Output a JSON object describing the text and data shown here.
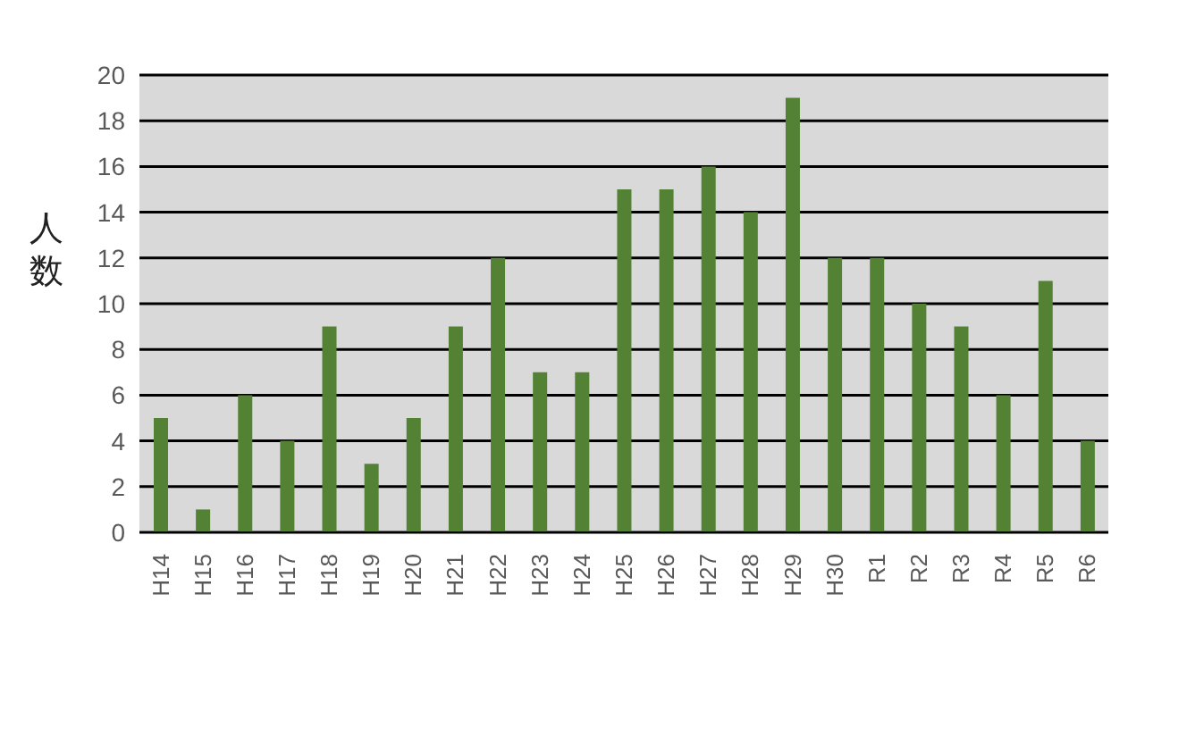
{
  "chart_data": {
    "type": "bar",
    "ylabel": "人数",
    "categories": [
      "H14",
      "H15",
      "H16",
      "H17",
      "H18",
      "H19",
      "H20",
      "H21",
      "H22",
      "H23",
      "H24",
      "H25",
      "H26",
      "H27",
      "H28",
      "H29",
      "H30",
      "R1",
      "R2",
      "R3",
      "R4",
      "R5",
      "R6"
    ],
    "values": [
      5,
      1,
      6,
      4,
      9,
      3,
      5,
      9,
      12,
      7,
      7,
      15,
      15,
      16,
      14,
      19,
      12,
      12,
      10,
      9,
      6,
      11,
      4
    ],
    "color": "#548235",
    "ylim": [
      0,
      20
    ],
    "yticks": [
      0,
      2,
      4,
      6,
      8,
      10,
      12,
      14,
      16,
      18,
      20
    ],
    "grid": "y",
    "legend": false
  }
}
